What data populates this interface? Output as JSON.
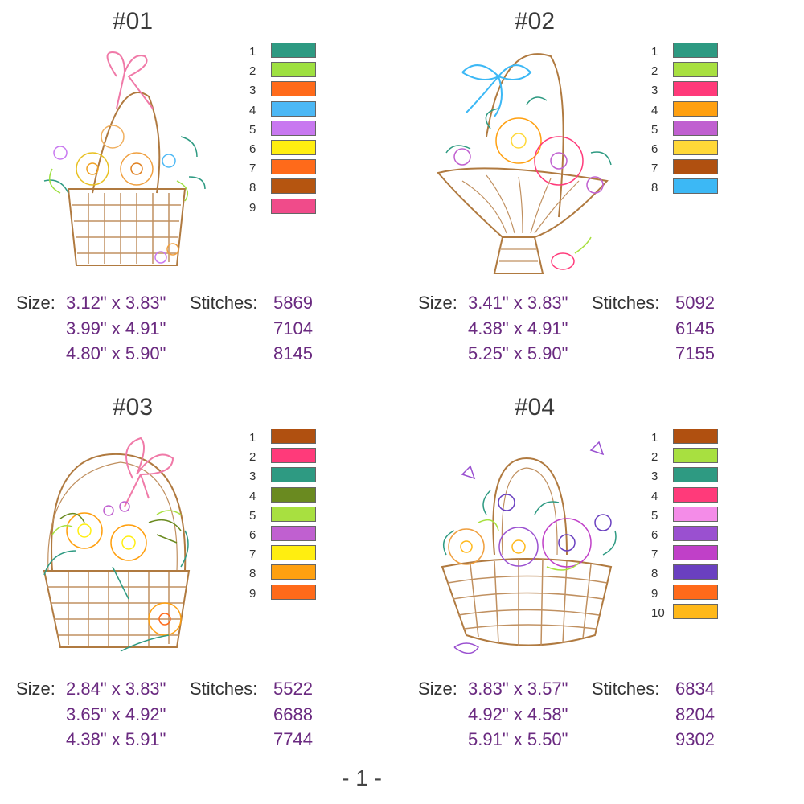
{
  "page_number": "- 1 -",
  "labels": {
    "size": "Size:",
    "stitches": "Stitches:"
  },
  "designs": [
    {
      "title": "#01",
      "icon": "flower-basket-bow-icon",
      "colors": [
        {
          "num": "1",
          "hex": "#2e9a82"
        },
        {
          "num": "2",
          "hex": "#9ee040"
        },
        {
          "num": "3",
          "hex": "#ff6a1a"
        },
        {
          "num": "4",
          "hex": "#4cb8f5"
        },
        {
          "num": "5",
          "hex": "#c878f0"
        },
        {
          "num": "6",
          "hex": "#ffee10"
        },
        {
          "num": "7",
          "hex": "#ff6a1a"
        },
        {
          "num": "8",
          "hex": "#b55510"
        },
        {
          "num": "9",
          "hex": "#f04b8a"
        }
      ],
      "sizes": [
        {
          "size": "3.12\" x 3.83\"",
          "stitches": "5869"
        },
        {
          "size": "3.99\" x 4.91\"",
          "stitches": "7104"
        },
        {
          "size": "4.80\" x 5.90\"",
          "stitches": "8145"
        }
      ]
    },
    {
      "title": "#02",
      "icon": "flower-basket-hibiscus-icon",
      "colors": [
        {
          "num": "1",
          "hex": "#2e9a82"
        },
        {
          "num": "2",
          "hex": "#a8e040"
        },
        {
          "num": "3",
          "hex": "#ff3a7a"
        },
        {
          "num": "4",
          "hex": "#ffa010"
        },
        {
          "num": "5",
          "hex": "#c060d0"
        },
        {
          "num": "6",
          "hex": "#ffd838"
        },
        {
          "num": "7",
          "hex": "#b05010"
        },
        {
          "num": "8",
          "hex": "#3cb8f5"
        }
      ],
      "sizes": [
        {
          "size": "3.41\" x 3.83\"",
          "stitches": "5092"
        },
        {
          "size": "4.38\" x 4.91\"",
          "stitches": "6145"
        },
        {
          "size": "5.25\" x 5.90\"",
          "stitches": "7155"
        }
      ]
    },
    {
      "title": "#03",
      "icon": "daffodil-basket-icon",
      "colors": [
        {
          "num": "1",
          "hex": "#b05010"
        },
        {
          "num": "2",
          "hex": "#ff3a7a"
        },
        {
          "num": "3",
          "hex": "#2e9a82"
        },
        {
          "num": "4",
          "hex": "#6a8a20"
        },
        {
          "num": "5",
          "hex": "#a8e040"
        },
        {
          "num": "6",
          "hex": "#c060d0"
        },
        {
          "num": "7",
          "hex": "#ffee10"
        },
        {
          "num": "8",
          "hex": "#ffa010"
        },
        {
          "num": "9",
          "hex": "#ff6a1a"
        }
      ],
      "sizes": [
        {
          "size": "2.84\" x 3.83\"",
          "stitches": "5522"
        },
        {
          "size": "3.65\" x 4.92\"",
          "stitches": "6688"
        },
        {
          "size": "4.38\" x 5.91\"",
          "stitches": "7744"
        }
      ]
    },
    {
      "title": "#04",
      "icon": "pansy-basket-icon",
      "colors": [
        {
          "num": "1",
          "hex": "#b05010"
        },
        {
          "num": "2",
          "hex": "#a8e040"
        },
        {
          "num": "3",
          "hex": "#2e9a82"
        },
        {
          "num": "4",
          "hex": "#ff3a7a"
        },
        {
          "num": "5",
          "hex": "#f48ce8"
        },
        {
          "num": "6",
          "hex": "#9a50d0"
        },
        {
          "num": "7",
          "hex": "#c040c8"
        },
        {
          "num": "8",
          "hex": "#6a40c0"
        },
        {
          "num": "9",
          "hex": "#ff6a1a"
        },
        {
          "num": "10",
          "hex": "#ffb81a"
        }
      ],
      "sizes": [
        {
          "size": "3.83\" x 3.57\"",
          "stitches": "6834"
        },
        {
          "size": "4.92\" x 4.58\"",
          "stitches": "8204"
        },
        {
          "size": "5.91\" x 5.50\"",
          "stitches": "9302"
        }
      ]
    }
  ]
}
